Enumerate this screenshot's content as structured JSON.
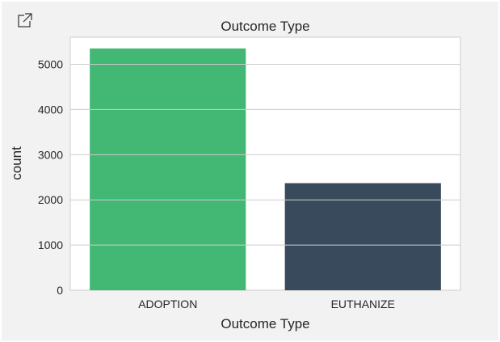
{
  "toolbar": {
    "expand_icon": "expand-icon"
  },
  "chart_data": {
    "type": "bar",
    "title": "Outcome Type",
    "xlabel": "Outcome Type",
    "ylabel": "count",
    "categories": [
      "ADOPTION",
      "EUTHANIZE"
    ],
    "values": [
      5350,
      2370
    ],
    "colors": [
      "#42b874",
      "#394a5c"
    ],
    "ylim": [
      0,
      5600
    ],
    "yticks": [
      0,
      1000,
      2000,
      3000,
      4000,
      5000
    ],
    "grid": true,
    "legend": "none"
  }
}
